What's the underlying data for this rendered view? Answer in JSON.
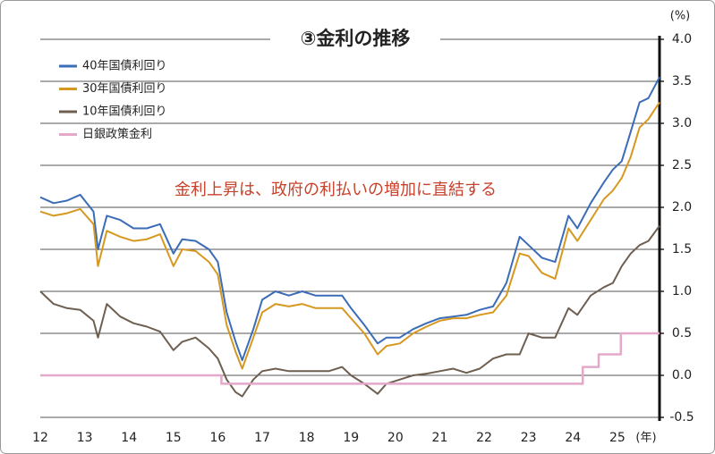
{
  "chart_data": {
    "type": "line",
    "title": "③金利の推移",
    "annotation": "金利上昇は、政府の利払いの増加に直結する",
    "x_unit": "(年)",
    "y_unit": "(%)",
    "legend": "upper left",
    "grid": true,
    "xlim": [
      2012,
      2025.95
    ],
    "xticks": [
      {
        "value": 2012,
        "label": "12"
      },
      {
        "value": 2013,
        "label": "13"
      },
      {
        "value": 2014,
        "label": "14"
      },
      {
        "value": 2015,
        "label": "15"
      },
      {
        "value": 2016,
        "label": "16"
      },
      {
        "value": 2017,
        "label": "17"
      },
      {
        "value": 2018,
        "label": "18"
      },
      {
        "value": 2019,
        "label": "19"
      },
      {
        "value": 2020,
        "label": "20"
      },
      {
        "value": 2021,
        "label": "21"
      },
      {
        "value": 2022,
        "label": "22"
      },
      {
        "value": 2023,
        "label": "23"
      },
      {
        "value": 2024,
        "label": "24"
      },
      {
        "value": 2025,
        "label": "25"
      }
    ],
    "ylim": [
      -0.5,
      4.0
    ],
    "yticks": [
      -0.5,
      {
        "value": 0,
        "label": "0.0"
      },
      0.5,
      {
        "value": 1,
        "label": "1.0"
      },
      1.5,
      {
        "value": 2,
        "label": "2.0"
      },
      2.5,
      {
        "value": 3,
        "label": "3.0"
      },
      3.5,
      {
        "value": 4,
        "label": "4.0"
      }
    ],
    "x": [
      2012.0,
      2012.3,
      2012.6,
      2012.9,
      2013.2,
      2013.3,
      2013.5,
      2013.8,
      2014.1,
      2014.4,
      2014.7,
      2015.0,
      2015.2,
      2015.5,
      2015.8,
      2016.0,
      2016.2,
      2016.4,
      2016.55,
      2016.8,
      2017.0,
      2017.3,
      2017.6,
      2017.9,
      2018.2,
      2018.5,
      2018.8,
      2019.0,
      2019.3,
      2019.6,
      2019.8,
      2020.1,
      2020.4,
      2020.7,
      2021.0,
      2021.3,
      2021.6,
      2021.9,
      2022.2,
      2022.5,
      2022.8,
      2023.0,
      2023.3,
      2023.6,
      2023.9,
      2024.1,
      2024.4,
      2024.7,
      2024.9,
      2025.1,
      2025.3,
      2025.5,
      2025.7,
      2025.95
    ],
    "series": [
      {
        "name": "40年国債利回り",
        "color": "#3b6cb7",
        "values": [
          2.12,
          2.05,
          2.08,
          2.15,
          1.95,
          1.5,
          1.9,
          1.85,
          1.75,
          1.75,
          1.8,
          1.45,
          1.62,
          1.6,
          1.5,
          1.35,
          0.75,
          0.4,
          0.18,
          0.55,
          0.9,
          1.0,
          0.95,
          1.0,
          0.95,
          0.95,
          0.95,
          0.8,
          0.6,
          0.38,
          0.45,
          0.45,
          0.55,
          0.62,
          0.68,
          0.7,
          0.72,
          0.78,
          0.82,
          1.1,
          1.65,
          1.55,
          1.4,
          1.35,
          1.9,
          1.75,
          2.05,
          2.3,
          2.45,
          2.55,
          2.9,
          3.25,
          3.3,
          3.55
        ]
      },
      {
        "name": "30年国債利回り",
        "color": "#d6981f",
        "values": [
          1.95,
          1.9,
          1.93,
          1.98,
          1.8,
          1.3,
          1.72,
          1.65,
          1.6,
          1.62,
          1.68,
          1.3,
          1.5,
          1.48,
          1.35,
          1.2,
          0.6,
          0.28,
          0.08,
          0.45,
          0.75,
          0.85,
          0.82,
          0.85,
          0.8,
          0.8,
          0.8,
          0.68,
          0.5,
          0.25,
          0.35,
          0.38,
          0.5,
          0.58,
          0.65,
          0.68,
          0.68,
          0.72,
          0.75,
          0.95,
          1.45,
          1.42,
          1.22,
          1.15,
          1.75,
          1.6,
          1.85,
          2.1,
          2.2,
          2.35,
          2.6,
          2.95,
          3.05,
          3.25
        ]
      },
      {
        "name": "10年国債利回り",
        "color": "#6e5f51",
        "values": [
          1.0,
          0.85,
          0.8,
          0.78,
          0.65,
          0.45,
          0.85,
          0.7,
          0.62,
          0.58,
          0.52,
          0.3,
          0.4,
          0.45,
          0.32,
          0.2,
          -0.05,
          -0.2,
          -0.25,
          -0.05,
          0.05,
          0.08,
          0.05,
          0.05,
          0.05,
          0.05,
          0.1,
          0.0,
          -0.1,
          -0.22,
          -0.1,
          -0.05,
          0.0,
          0.02,
          0.05,
          0.08,
          0.03,
          0.08,
          0.2,
          0.25,
          0.25,
          0.5,
          0.45,
          0.45,
          0.8,
          0.72,
          0.95,
          1.05,
          1.1,
          1.3,
          1.45,
          1.55,
          1.6,
          1.78
        ]
      },
      {
        "name": "日銀政策金利",
        "color": "#e4a8c9",
        "x": [
          2012,
          2016.08,
          2016.08,
          2024.22,
          2024.22,
          2024.58,
          2024.58,
          2025.08,
          2025.08,
          2025.95
        ],
        "values": [
          0,
          0,
          -0.1,
          -0.1,
          0.1,
          0.1,
          0.25,
          0.25,
          0.5,
          0.5
        ]
      }
    ]
  }
}
